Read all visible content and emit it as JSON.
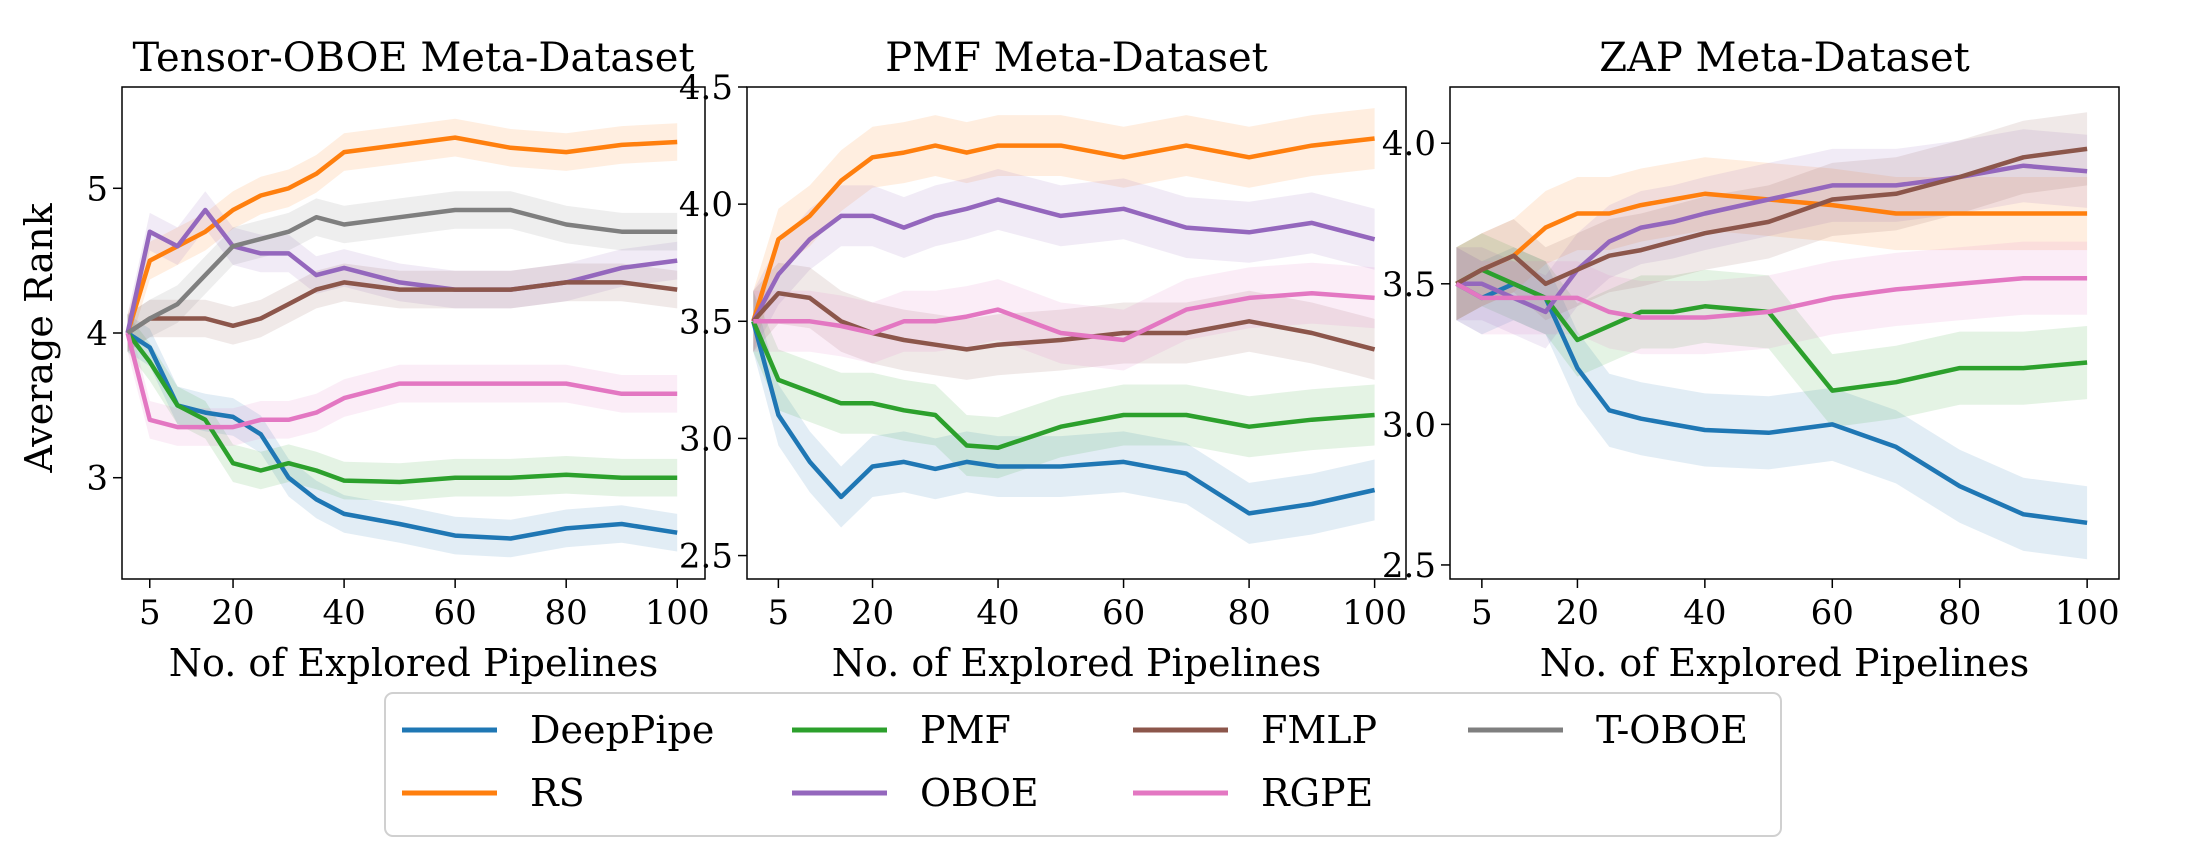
{
  "figure": {
    "ylabel": "Average Rank",
    "xlabel": "No. of Explored Pipelines"
  },
  "legend": {
    "placement": "bottom-center",
    "entries": [
      {
        "name": "DeepPipe",
        "color": "#1f77b4"
      },
      {
        "name": "RS",
        "color": "#ff7f0e"
      },
      {
        "name": "PMF",
        "color": "#2ca02c"
      },
      {
        "name": "OBOE",
        "color": "#9467bd"
      },
      {
        "name": "FMLP",
        "color": "#8c564b"
      },
      {
        "name": "RGPE",
        "color": "#e377c2"
      },
      {
        "name": "T-OBOE",
        "color": "#7f7f7f"
      }
    ]
  },
  "chart_data": [
    {
      "type": "line",
      "title": "Tensor-OBOE Meta-Dataset",
      "xlabel": "No. of Explored Pipelines",
      "ylabel": "Average Rank",
      "xlim": [
        0,
        105
      ],
      "ylim": [
        2.3,
        5.7
      ],
      "xticks": [
        5,
        20,
        40,
        60,
        80,
        100
      ],
      "yticks": [
        3,
        4,
        5
      ],
      "grid": false,
      "x": [
        1,
        5,
        10,
        15,
        20,
        25,
        30,
        35,
        40,
        50,
        60,
        70,
        80,
        90,
        100
      ],
      "series": [
        {
          "name": "DeepPipe",
          "color": "#1f77b4",
          "values": [
            4.0,
            3.9,
            3.5,
            3.45,
            3.42,
            3.3,
            3.0,
            2.85,
            2.75,
            2.68,
            2.6,
            2.58,
            2.65,
            2.68,
            2.62
          ]
        },
        {
          "name": "RS",
          "color": "#ff7f0e",
          "values": [
            4.0,
            4.5,
            4.6,
            4.7,
            4.85,
            4.95,
            5.0,
            5.1,
            5.25,
            5.3,
            5.35,
            5.28,
            5.25,
            5.3,
            5.32
          ]
        },
        {
          "name": "PMF",
          "color": "#2ca02c",
          "values": [
            4.0,
            3.8,
            3.5,
            3.4,
            3.1,
            3.05,
            3.1,
            3.05,
            2.98,
            2.97,
            3.0,
            3.0,
            3.02,
            3.0,
            3.0
          ]
        },
        {
          "name": "OBOE",
          "color": "#9467bd",
          "values": [
            4.0,
            4.7,
            4.6,
            4.85,
            4.6,
            4.55,
            4.55,
            4.4,
            4.45,
            4.35,
            4.3,
            4.3,
            4.35,
            4.45,
            4.5
          ]
        },
        {
          "name": "FMLP",
          "color": "#8c564b",
          "values": [
            4.0,
            4.1,
            4.1,
            4.1,
            4.05,
            4.1,
            4.2,
            4.3,
            4.35,
            4.3,
            4.3,
            4.3,
            4.35,
            4.35,
            4.3
          ]
        },
        {
          "name": "RGPE",
          "color": "#e377c2",
          "values": [
            4.0,
            3.4,
            3.35,
            3.35,
            3.35,
            3.4,
            3.4,
            3.45,
            3.55,
            3.65,
            3.65,
            3.65,
            3.65,
            3.58,
            3.58
          ]
        },
        {
          "name": "T-OBOE",
          "color": "#7f7f7f",
          "values": [
            4.0,
            4.1,
            4.2,
            4.4,
            4.6,
            4.65,
            4.7,
            4.8,
            4.75,
            4.8,
            4.85,
            4.85,
            4.75,
            4.7,
            4.7
          ]
        }
      ]
    },
    {
      "type": "line",
      "title": "PMF Meta-Dataset",
      "xlabel": "No. of Explored Pipelines",
      "ylabel": "",
      "xlim": [
        0,
        105
      ],
      "ylim": [
        2.4,
        4.5
      ],
      "xticks": [
        5,
        20,
        40,
        60,
        80,
        100
      ],
      "yticks": [
        2.5,
        3.0,
        3.5,
        4.0,
        4.5
      ],
      "grid": false,
      "x": [
        1,
        5,
        10,
        15,
        20,
        25,
        30,
        35,
        40,
        50,
        60,
        70,
        80,
        90,
        100
      ],
      "series": [
        {
          "name": "DeepPipe",
          "color": "#1f77b4",
          "values": [
            3.5,
            3.1,
            2.9,
            2.75,
            2.88,
            2.9,
            2.87,
            2.9,
            2.88,
            2.88,
            2.9,
            2.85,
            2.68,
            2.72,
            2.78
          ]
        },
        {
          "name": "RS",
          "color": "#ff7f0e",
          "values": [
            3.5,
            3.85,
            3.95,
            4.1,
            4.2,
            4.22,
            4.25,
            4.22,
            4.25,
            4.25,
            4.2,
            4.25,
            4.2,
            4.25,
            4.28
          ]
        },
        {
          "name": "PMF",
          "color": "#2ca02c",
          "values": [
            3.5,
            3.25,
            3.2,
            3.15,
            3.15,
            3.12,
            3.1,
            2.97,
            2.96,
            3.05,
            3.1,
            3.1,
            3.05,
            3.08,
            3.1
          ]
        },
        {
          "name": "OBOE",
          "color": "#9467bd",
          "values": [
            3.5,
            3.7,
            3.85,
            3.95,
            3.95,
            3.9,
            3.95,
            3.98,
            4.02,
            3.95,
            3.98,
            3.9,
            3.88,
            3.92,
            3.85
          ]
        },
        {
          "name": "FMLP",
          "color": "#8c564b",
          "values": [
            3.5,
            3.62,
            3.6,
            3.5,
            3.45,
            3.42,
            3.4,
            3.38,
            3.4,
            3.42,
            3.45,
            3.45,
            3.5,
            3.45,
            3.38
          ]
        },
        {
          "name": "RGPE",
          "color": "#e377c2",
          "values": [
            3.5,
            3.5,
            3.5,
            3.48,
            3.45,
            3.5,
            3.5,
            3.52,
            3.55,
            3.45,
            3.42,
            3.55,
            3.6,
            3.62,
            3.6
          ]
        }
      ]
    },
    {
      "type": "line",
      "title": "ZAP Meta-Dataset",
      "xlabel": "No. of Explored Pipelines",
      "ylabel": "",
      "xlim": [
        0,
        105
      ],
      "ylim": [
        2.45,
        4.2
      ],
      "xticks": [
        5,
        20,
        40,
        60,
        80,
        100
      ],
      "yticks": [
        2.5,
        3.0,
        3.5,
        4.0
      ],
      "grid": false,
      "x": [
        1,
        5,
        10,
        15,
        20,
        25,
        30,
        35,
        40,
        50,
        60,
        70,
        80,
        90,
        100
      ],
      "series": [
        {
          "name": "DeepPipe",
          "color": "#1f77b4",
          "values": [
            3.5,
            3.45,
            3.5,
            3.45,
            3.2,
            3.05,
            3.02,
            3.0,
            2.98,
            2.97,
            3.0,
            2.92,
            2.78,
            2.68,
            2.65
          ]
        },
        {
          "name": "RS",
          "color": "#ff7f0e",
          "values": [
            3.5,
            3.55,
            3.6,
            3.7,
            3.75,
            3.75,
            3.78,
            3.8,
            3.82,
            3.8,
            3.78,
            3.75,
            3.75,
            3.75,
            3.75
          ]
        },
        {
          "name": "PMF",
          "color": "#2ca02c",
          "values": [
            3.5,
            3.55,
            3.5,
            3.45,
            3.3,
            3.35,
            3.4,
            3.4,
            3.42,
            3.4,
            3.12,
            3.15,
            3.2,
            3.2,
            3.22
          ]
        },
        {
          "name": "OBOE",
          "color": "#9467bd",
          "values": [
            3.5,
            3.5,
            3.45,
            3.4,
            3.55,
            3.65,
            3.7,
            3.72,
            3.75,
            3.8,
            3.85,
            3.85,
            3.88,
            3.92,
            3.9
          ]
        },
        {
          "name": "FMLP",
          "color": "#8c564b",
          "values": [
            3.5,
            3.55,
            3.6,
            3.5,
            3.55,
            3.6,
            3.62,
            3.65,
            3.68,
            3.72,
            3.8,
            3.82,
            3.88,
            3.95,
            3.98
          ]
        },
        {
          "name": "RGPE",
          "color": "#e377c2",
          "values": [
            3.5,
            3.45,
            3.45,
            3.45,
            3.45,
            3.4,
            3.38,
            3.38,
            3.38,
            3.4,
            3.45,
            3.48,
            3.5,
            3.52,
            3.52
          ]
        }
      ]
    }
  ]
}
